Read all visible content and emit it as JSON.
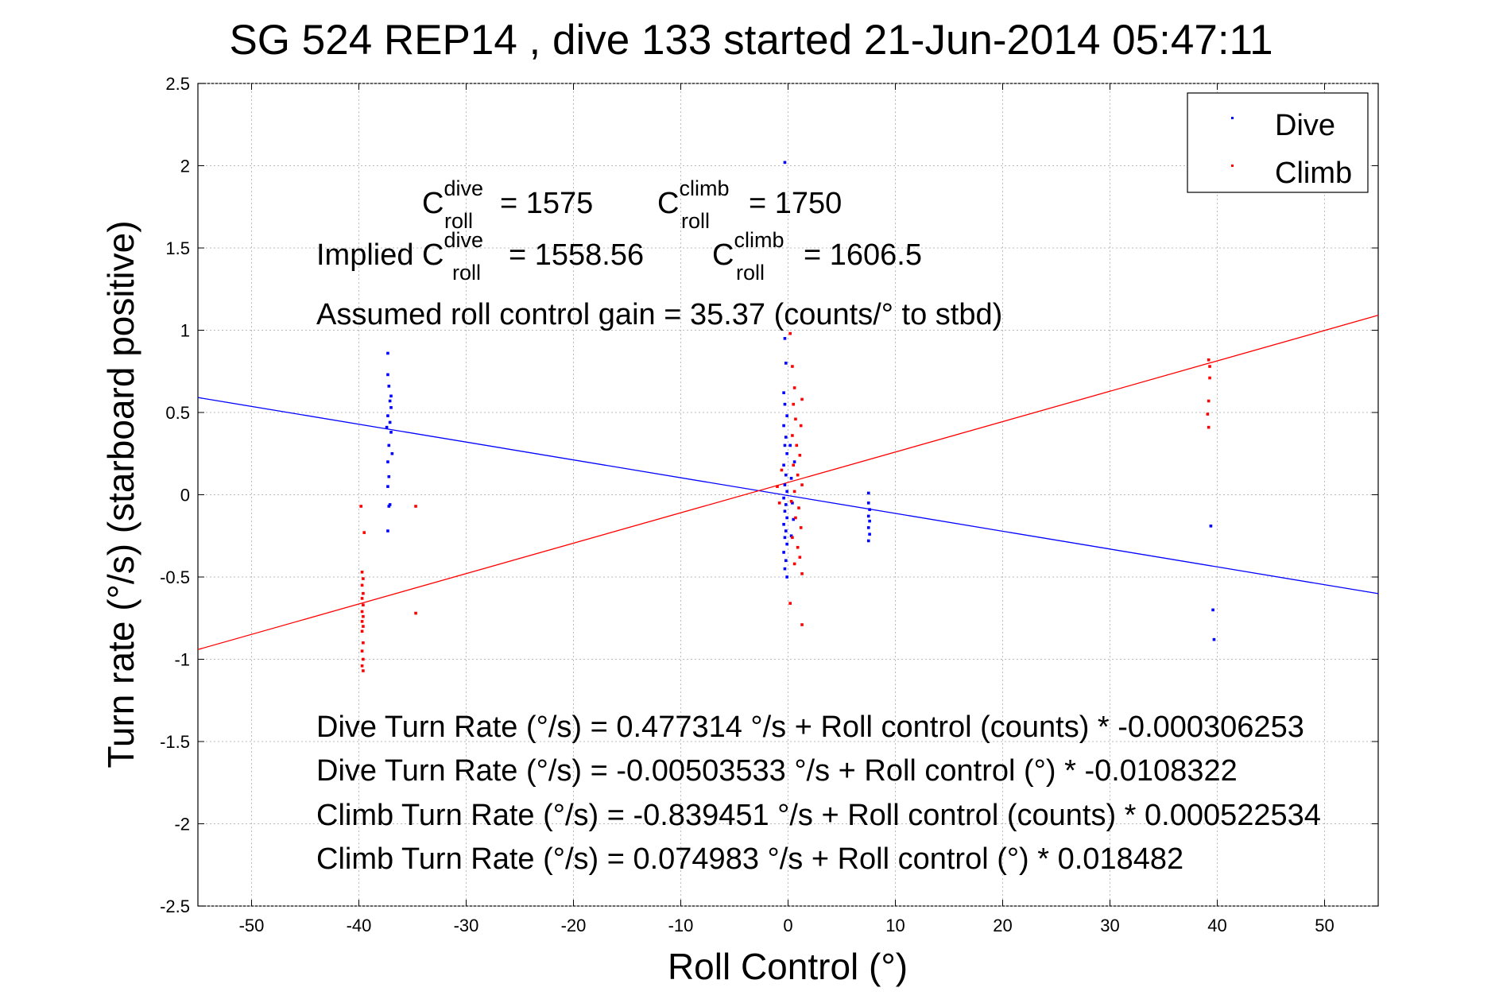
{
  "title": "SG 524   REP14  , dive 133 started 21-Jun-2014 05:47:11",
  "chart_data": {
    "type": "scatter",
    "title": "SG 524   REP14  , dive 133 started 21-Jun-2014 05:47:11",
    "xlabel": "Roll Control (°)",
    "ylabel": "Turn rate (°/s)  (starboard positive)",
    "xlim": [
      -55,
      55
    ],
    "ylim": [
      -2.5,
      2.5
    ],
    "xticks": [
      -50,
      -40,
      -30,
      -20,
      -10,
      0,
      10,
      20,
      30,
      40,
      50
    ],
    "yticks": [
      -2.5,
      -2,
      -1.5,
      -1,
      -0.5,
      0,
      0.5,
      1,
      1.5,
      2,
      2.5
    ],
    "grid": true,
    "legend_position": "top-right",
    "series": [
      {
        "name": "Dive",
        "color": "#0000ff",
        "marker": "dot",
        "points": [
          [
            -37.3,
            0.86
          ],
          [
            -37.3,
            0.73
          ],
          [
            -37.2,
            0.66
          ],
          [
            -37.0,
            0.6
          ],
          [
            -37.1,
            0.57
          ],
          [
            -37.0,
            0.53
          ],
          [
            -37.3,
            0.48
          ],
          [
            -37.1,
            0.44
          ],
          [
            -37.4,
            0.41
          ],
          [
            -37.0,
            0.38
          ],
          [
            -37.2,
            0.3
          ],
          [
            -36.9,
            0.25
          ],
          [
            -37.3,
            0.2
          ],
          [
            -37.2,
            0.11
          ],
          [
            -37.3,
            0.05
          ],
          [
            -37.1,
            -0.06
          ],
          [
            -37.2,
            -0.07
          ],
          [
            -37.3,
            -0.22
          ],
          [
            -0.3,
            2.02
          ],
          [
            -0.3,
            0.95
          ],
          [
            -0.2,
            0.8
          ],
          [
            -0.4,
            0.62
          ],
          [
            -0.3,
            0.55
          ],
          [
            -0.1,
            0.48
          ],
          [
            -0.4,
            0.42
          ],
          [
            -0.2,
            0.35
          ],
          [
            -0.3,
            0.3
          ],
          [
            -0.1,
            0.25
          ],
          [
            -0.4,
            0.18
          ],
          [
            -0.2,
            0.12
          ],
          [
            -0.3,
            0.06
          ],
          [
            -0.1,
            0.02
          ],
          [
            -0.4,
            -0.02
          ],
          [
            -0.2,
            -0.06
          ],
          [
            -0.3,
            -0.1
          ],
          [
            -0.1,
            -0.14
          ],
          [
            -0.4,
            -0.18
          ],
          [
            -0.2,
            -0.22
          ],
          [
            -0.3,
            -0.26
          ],
          [
            -0.1,
            -0.3
          ],
          [
            -0.4,
            -0.35
          ],
          [
            -0.2,
            -0.4
          ],
          [
            -0.3,
            -0.45
          ],
          [
            -0.1,
            -0.5
          ],
          [
            0.2,
            0.3
          ],
          [
            0.3,
            0.1
          ],
          [
            0.4,
            -0.05
          ],
          [
            0.5,
            -0.15
          ],
          [
            0.3,
            -0.25
          ],
          [
            0.6,
            0.2
          ],
          [
            7.5,
            0.01
          ],
          [
            7.5,
            -0.05
          ],
          [
            7.6,
            -0.09
          ],
          [
            7.5,
            -0.13
          ],
          [
            7.6,
            -0.16
          ],
          [
            7.5,
            -0.2
          ],
          [
            7.6,
            -0.24
          ],
          [
            7.5,
            -0.28
          ],
          [
            39.4,
            -0.19
          ],
          [
            39.6,
            -0.7
          ],
          [
            39.7,
            -0.88
          ]
        ]
      },
      {
        "name": "Climb",
        "color": "#ff0000",
        "marker": "dot",
        "points": [
          [
            -39.8,
            -0.07
          ],
          [
            -39.5,
            -0.23
          ],
          [
            -39.7,
            -0.47
          ],
          [
            -39.6,
            -0.51
          ],
          [
            -39.7,
            -0.55
          ],
          [
            -39.6,
            -0.6
          ],
          [
            -39.7,
            -0.63
          ],
          [
            -39.6,
            -0.67
          ],
          [
            -39.7,
            -0.71
          ],
          [
            -39.6,
            -0.74
          ],
          [
            -39.7,
            -0.77
          ],
          [
            -39.6,
            -0.8
          ],
          [
            -39.7,
            -0.83
          ],
          [
            -39.6,
            -0.9
          ],
          [
            -39.7,
            -0.95
          ],
          [
            -39.6,
            -1.0
          ],
          [
            -39.7,
            -1.04
          ],
          [
            -39.6,
            -1.07
          ],
          [
            -34.7,
            -0.07
          ],
          [
            -34.7,
            -0.72
          ],
          [
            0.2,
            0.98
          ],
          [
            0.4,
            0.78
          ],
          [
            0.6,
            0.65
          ],
          [
            0.5,
            0.55
          ],
          [
            1.3,
            0.58
          ],
          [
            0.7,
            0.46
          ],
          [
            1.2,
            0.42
          ],
          [
            0.4,
            0.36
          ],
          [
            0.8,
            0.3
          ],
          [
            1.1,
            0.24
          ],
          [
            0.5,
            0.18
          ],
          [
            0.9,
            0.12
          ],
          [
            1.3,
            0.06
          ],
          [
            0.6,
            0.02
          ],
          [
            0.3,
            -0.04
          ],
          [
            1.0,
            -0.08
          ],
          [
            0.7,
            -0.14
          ],
          [
            1.2,
            -0.2
          ],
          [
            0.4,
            -0.26
          ],
          [
            0.9,
            -0.32
          ],
          [
            1.1,
            -0.38
          ],
          [
            0.6,
            -0.42
          ],
          [
            1.3,
            -0.48
          ],
          [
            -1.0,
            0.05
          ],
          [
            -0.8,
            -0.05
          ],
          [
            -0.6,
            0.15
          ],
          [
            0.2,
            -0.66
          ],
          [
            1.3,
            -0.79
          ],
          [
            39.2,
            0.82
          ],
          [
            39.3,
            0.78
          ],
          [
            39.3,
            0.71
          ],
          [
            39.2,
            0.57
          ],
          [
            39.1,
            0.49
          ],
          [
            39.2,
            0.41
          ]
        ]
      }
    ],
    "fit_lines": [
      {
        "name": "Dive fit",
        "color": "#0000ff",
        "from": [
          -55,
          0.591
        ],
        "to": [
          55,
          -0.601
        ]
      },
      {
        "name": "Climb fit",
        "color": "#ff0000",
        "from": [
          -55,
          -0.941
        ],
        "to": [
          55,
          1.091
        ]
      }
    ],
    "annotations": [
      "Dive Turn Rate (°/s) = 0.477314 °/s + Roll control (counts) * -0.000306253",
      "Dive Turn Rate (°/s) = -0.00503533 °/s + Roll control (°) * -0.0108322",
      "Climb Turn Rate (°/s) = -0.839451 °/s + Roll control (counts) * 0.000522534",
      "Climb Turn Rate (°/s) = 0.074983 °/s + Roll control (°) * 0.018482"
    ],
    "coefficients": {
      "c_roll_symbol": "C",
      "sub_roll": "roll",
      "sup_dive": "dive",
      "sup_climb": "climb",
      "implied_prefix": "Implied C",
      "dive_value": "= 1575",
      "climb_value": "= 1750",
      "implied_dive_value": "= 1558.56",
      "implied_climb_value": "= 1606.5",
      "gain_text": "Assumed roll control gain = 35.37 (counts/° to stbd)"
    }
  }
}
